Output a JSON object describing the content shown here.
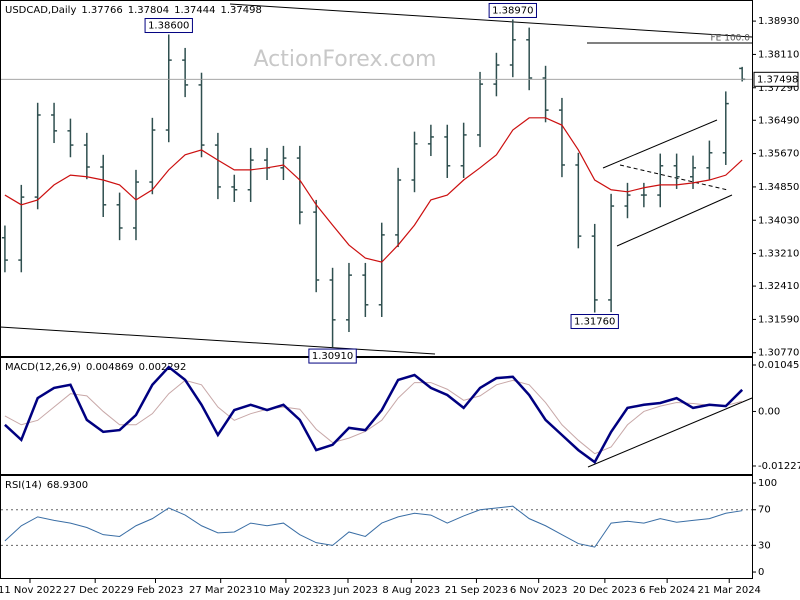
{
  "chart_data": {
    "type": "ohlc",
    "symbol": "USDCAD,Daily",
    "watermark": "ActionForex.com",
    "fe_label": "FE 100.0",
    "color": "#2f4f4f",
    "xlim": [
      -0.3,
      45.6
    ],
    "xticks": [
      {
        "value": 1.53,
        "label": "11 Nov 2022"
      },
      {
        "value": 5.51,
        "label": "27 Dec 2022"
      },
      {
        "value": 9.19,
        "label": "9 Feb 2023"
      },
      {
        "value": 13.17,
        "label": "27 Mar 2023"
      },
      {
        "value": 17.15,
        "label": "10 May 2023"
      },
      {
        "value": 20.94,
        "label": "23 Jun 2023"
      },
      {
        "value": 24.8,
        "label": "8 Aug 2023"
      },
      {
        "value": 28.78,
        "label": "21 Sep 2023"
      },
      {
        "value": 32.58,
        "label": "6 Nov 2023"
      },
      {
        "value": 36.62,
        "label": "20 Dec 2023"
      },
      {
        "value": 40.42,
        "label": "6 Feb 2024"
      },
      {
        "value": 44.21,
        "label": "21 Mar 2024"
      }
    ],
    "ylim": [
      1.3069,
      1.394
    ],
    "yticks": [
      {
        "value": 1.3893,
        "label": "1.38930"
      },
      {
        "value": 1.3811,
        "label": "1.38110"
      },
      {
        "value": 1.3729,
        "label": "1.37290"
      },
      {
        "value": 1.3649,
        "label": "1.36490"
      },
      {
        "value": 1.3567,
        "label": "1.35670"
      },
      {
        "value": 1.3485,
        "label": "1.34850"
      },
      {
        "value": 1.3403,
        "label": "1.34030"
      },
      {
        "value": 1.3321,
        "label": "1.33210"
      },
      {
        "value": 1.3241,
        "label": "1.32410"
      },
      {
        "value": 1.3159,
        "label": "1.31590"
      },
      {
        "value": 1.3077,
        "label": "1.30770"
      }
    ],
    "ohlc": {
      "open": [
        1.336,
        1.3305,
        1.346,
        1.3662,
        1.3623,
        1.3588,
        1.3534,
        1.3441,
        1.3384,
        1.3497,
        1.3625,
        1.3797,
        1.3736,
        1.3588,
        1.3485,
        1.3478,
        1.3551,
        1.3532,
        1.3556,
        1.3423,
        1.3256,
        1.3158,
        1.3268,
        1.3195,
        1.3367,
        1.3502,
        1.3591,
        1.3608,
        1.3537,
        1.3613,
        1.3738,
        1.3785,
        1.3847,
        1.3753,
        1.3674,
        1.3539,
        1.3364,
        1.3207,
        1.3438,
        1.3465,
        1.3465,
        1.3537,
        1.351,
        1.3532,
        1.3569,
        1.37766
      ],
      "high": [
        1.339,
        1.349,
        1.3692,
        1.3692,
        1.3653,
        1.3618,
        1.3564,
        1.3471,
        1.3527,
        1.3655,
        1.386,
        1.3827,
        1.3766,
        1.3618,
        1.3515,
        1.3581,
        1.3581,
        1.3586,
        1.3586,
        1.3453,
        1.3286,
        1.3298,
        1.3298,
        1.3397,
        1.3532,
        1.3621,
        1.3638,
        1.3638,
        1.3643,
        1.3768,
        1.3815,
        1.3897,
        1.3877,
        1.3783,
        1.3704,
        1.3569,
        1.3394,
        1.3468,
        1.3495,
        1.3495,
        1.3567,
        1.3567,
        1.3562,
        1.3599,
        1.372,
        1.37804
      ],
      "low": [
        1.3275,
        1.3275,
        1.343,
        1.3593,
        1.3558,
        1.3504,
        1.3411,
        1.3354,
        1.3354,
        1.3467,
        1.3595,
        1.3706,
        1.3558,
        1.3455,
        1.3448,
        1.3448,
        1.3502,
        1.3502,
        1.3393,
        1.3226,
        1.3091,
        1.3128,
        1.3165,
        1.3165,
        1.3337,
        1.3472,
        1.3561,
        1.3507,
        1.3507,
        1.3583,
        1.3708,
        1.3755,
        1.3723,
        1.3644,
        1.3509,
        1.3334,
        1.3176,
        1.3177,
        1.3408,
        1.3435,
        1.3435,
        1.348,
        1.348,
        1.3502,
        1.3539,
        1.37444
      ],
      "close": [
        1.3305,
        1.346,
        1.3662,
        1.3623,
        1.3588,
        1.3534,
        1.3441,
        1.3384,
        1.3497,
        1.3625,
        1.3797,
        1.3736,
        1.3588,
        1.3485,
        1.3478,
        1.3551,
        1.3532,
        1.3556,
        1.3423,
        1.3256,
        1.3158,
        1.3268,
        1.3195,
        1.3367,
        1.3502,
        1.3591,
        1.3608,
        1.3537,
        1.3613,
        1.3738,
        1.3785,
        1.3847,
        1.3753,
        1.3674,
        1.3539,
        1.3364,
        1.3207,
        1.3438,
        1.3465,
        1.3465,
        1.3537,
        1.351,
        1.3532,
        1.3569,
        1.369,
        1.37498
      ]
    },
    "ma": {
      "color": "#cc1010",
      "values": [
        1.3465,
        1.3441,
        1.3453,
        1.349,
        1.3514,
        1.351,
        1.3502,
        1.349,
        1.3453,
        1.3478,
        1.3527,
        1.3564,
        1.3576,
        1.3551,
        1.3527,
        1.3527,
        1.3532,
        1.3539,
        1.3502,
        1.3441,
        1.3391,
        1.3342,
        1.331,
        1.33,
        1.3342,
        1.3391,
        1.3453,
        1.3465,
        1.3502,
        1.3532,
        1.3564,
        1.3625,
        1.3655,
        1.3655,
        1.3637,
        1.3576,
        1.3502,
        1.3478,
        1.3473,
        1.3483,
        1.349,
        1.349,
        1.3495,
        1.3502,
        1.3514,
        1.3551
      ]
    },
    "annotations": [
      {
        "label": "1.38600",
        "value": 1.386,
        "bar": 10,
        "position": "above"
      },
      {
        "label": "1.38970",
        "value": 1.3897,
        "bar": 31,
        "position": "above"
      },
      {
        "label": "1.30910",
        "value": 1.3091,
        "bar": 20,
        "position": "below"
      },
      {
        "label": "1.31760",
        "value": 1.3176,
        "bar": 36,
        "position": "below"
      }
    ],
    "macd": {
      "title": "MACD(12,26,9)",
      "ylim": [
        -0.01408,
        0.01203
      ],
      "yticks": [
        0.010457,
        {
          "value": 0,
          "label": "0.00"
        },
        -0.012276
      ],
      "macd": {
        "color": "#000080",
        "values": [
          -0.003,
          -0.0064,
          0.003,
          0.0053,
          0.006,
          -0.0019,
          -0.0046,
          -0.0042,
          -0.0008,
          0.006,
          0.01,
          0.0071,
          0.0015,
          -0.0053,
          0.0003,
          0.0015,
          0.0003,
          0.0015,
          -0.0019,
          -0.0087,
          -0.0075,
          -0.0037,
          -0.0042,
          0.0003,
          0.0071,
          0.0082,
          0.0053,
          0.0037,
          0.0008,
          0.0053,
          0.0075,
          0.0078,
          0.0037,
          -0.0019,
          -0.0053,
          -0.0087,
          -0.0114,
          -0.0046,
          0.0008,
          0.0015,
          0.0019,
          0.003,
          0.0008,
          0.0015,
          0.0012,
          0.004869
        ]
      },
      "signal": {
        "color": "#c8a8a8",
        "values": [
          -0.001,
          -0.003,
          -0.002,
          0.001,
          0.004,
          0.0035,
          0.0,
          -0.003,
          -0.003,
          -0.0005,
          0.004,
          0.007,
          0.006,
          0.001,
          -0.002,
          -0.0005,
          0.0005,
          0.001,
          0.0005,
          -0.004,
          -0.007,
          -0.006,
          -0.0045,
          -0.002,
          0.003,
          0.0065,
          0.0065,
          0.005,
          0.0025,
          0.0035,
          0.006,
          0.007,
          0.006,
          0.002,
          -0.003,
          -0.0065,
          -0.0095,
          -0.008,
          -0.003,
          0.0,
          0.0012,
          0.002,
          0.0018,
          0.0014,
          0.0013,
          0.002292
        ]
      }
    },
    "rsi": {
      "title": "RSI(14)",
      "reading": {
        "value": 68.93,
        "label": "68.9300"
      },
      "ylim": [
        -6.7,
        107.9
      ],
      "yticks": [
        100,
        70,
        30,
        0
      ],
      "levels": [
        70,
        30
      ],
      "color": "#3a6ea5",
      "values": [
        35,
        52,
        62,
        58,
        55,
        50,
        42,
        40,
        52,
        60,
        72,
        64,
        52,
        44,
        45,
        55,
        52,
        55,
        42,
        33,
        30,
        45,
        40,
        55,
        62,
        66,
        64,
        55,
        63,
        70,
        72,
        74,
        60,
        52,
        42,
        32,
        28,
        55,
        57,
        55,
        60,
        56,
        58,
        60,
        66,
        68.93
      ]
    }
  }
}
